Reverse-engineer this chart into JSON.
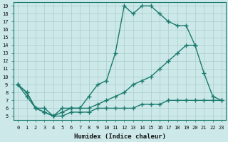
{
  "line1_x": [
    0,
    1,
    2,
    3,
    4,
    5,
    6,
    7,
    8,
    9,
    10,
    11,
    12,
    13,
    14,
    15,
    16,
    17,
    18,
    19,
    20
  ],
  "line1_y": [
    9,
    8,
    6,
    6,
    5,
    6,
    6,
    6,
    7.5,
    9,
    9.5,
    13,
    19,
    18,
    19,
    19,
    18,
    17,
    16.5,
    16.5,
    14
  ],
  "line2_x": [
    0,
    1,
    2,
    3,
    4,
    5,
    6,
    7,
    8,
    9,
    10,
    11,
    12,
    13,
    14,
    15,
    16,
    17,
    18,
    19,
    20,
    21,
    22,
    23
  ],
  "line2_y": [
    9,
    8,
    6,
    5.5,
    5,
    5.5,
    6,
    6,
    6,
    6.5,
    7,
    7.5,
    8,
    9,
    9.5,
    10,
    11,
    12,
    13,
    14,
    14,
    10.5,
    7.5,
    7
  ],
  "line3_x": [
    0,
    1,
    2,
    3,
    4,
    5,
    6,
    7,
    8,
    9,
    10,
    11,
    12,
    13,
    14,
    15,
    16,
    17,
    18,
    19,
    20,
    21,
    22,
    23
  ],
  "line3_y": [
    9,
    7.5,
    6,
    5.5,
    5,
    5,
    5.5,
    5.5,
    5.5,
    6,
    6,
    6,
    6,
    6,
    6.5,
    6.5,
    6.5,
    7,
    7,
    7,
    7,
    7,
    7,
    7
  ],
  "color": "#1a7a6e",
  "bg_color": "#cce8e8",
  "grid_color": "#aacece",
  "xlabel": "Humidex (Indice chaleur)",
  "xlim": [
    -0.5,
    23.5
  ],
  "ylim": [
    4.5,
    19.5
  ],
  "xticks": [
    0,
    1,
    2,
    3,
    4,
    5,
    6,
    7,
    8,
    9,
    10,
    11,
    12,
    13,
    14,
    15,
    16,
    17,
    18,
    19,
    20,
    21,
    22,
    23
  ],
  "yticks": [
    5,
    6,
    7,
    8,
    9,
    10,
    11,
    12,
    13,
    14,
    15,
    16,
    17,
    18,
    19
  ],
  "marker": "+",
  "markersize": 4,
  "linewidth": 1.0,
  "tick_fontsize": 5.0,
  "label_fontsize": 6.5
}
